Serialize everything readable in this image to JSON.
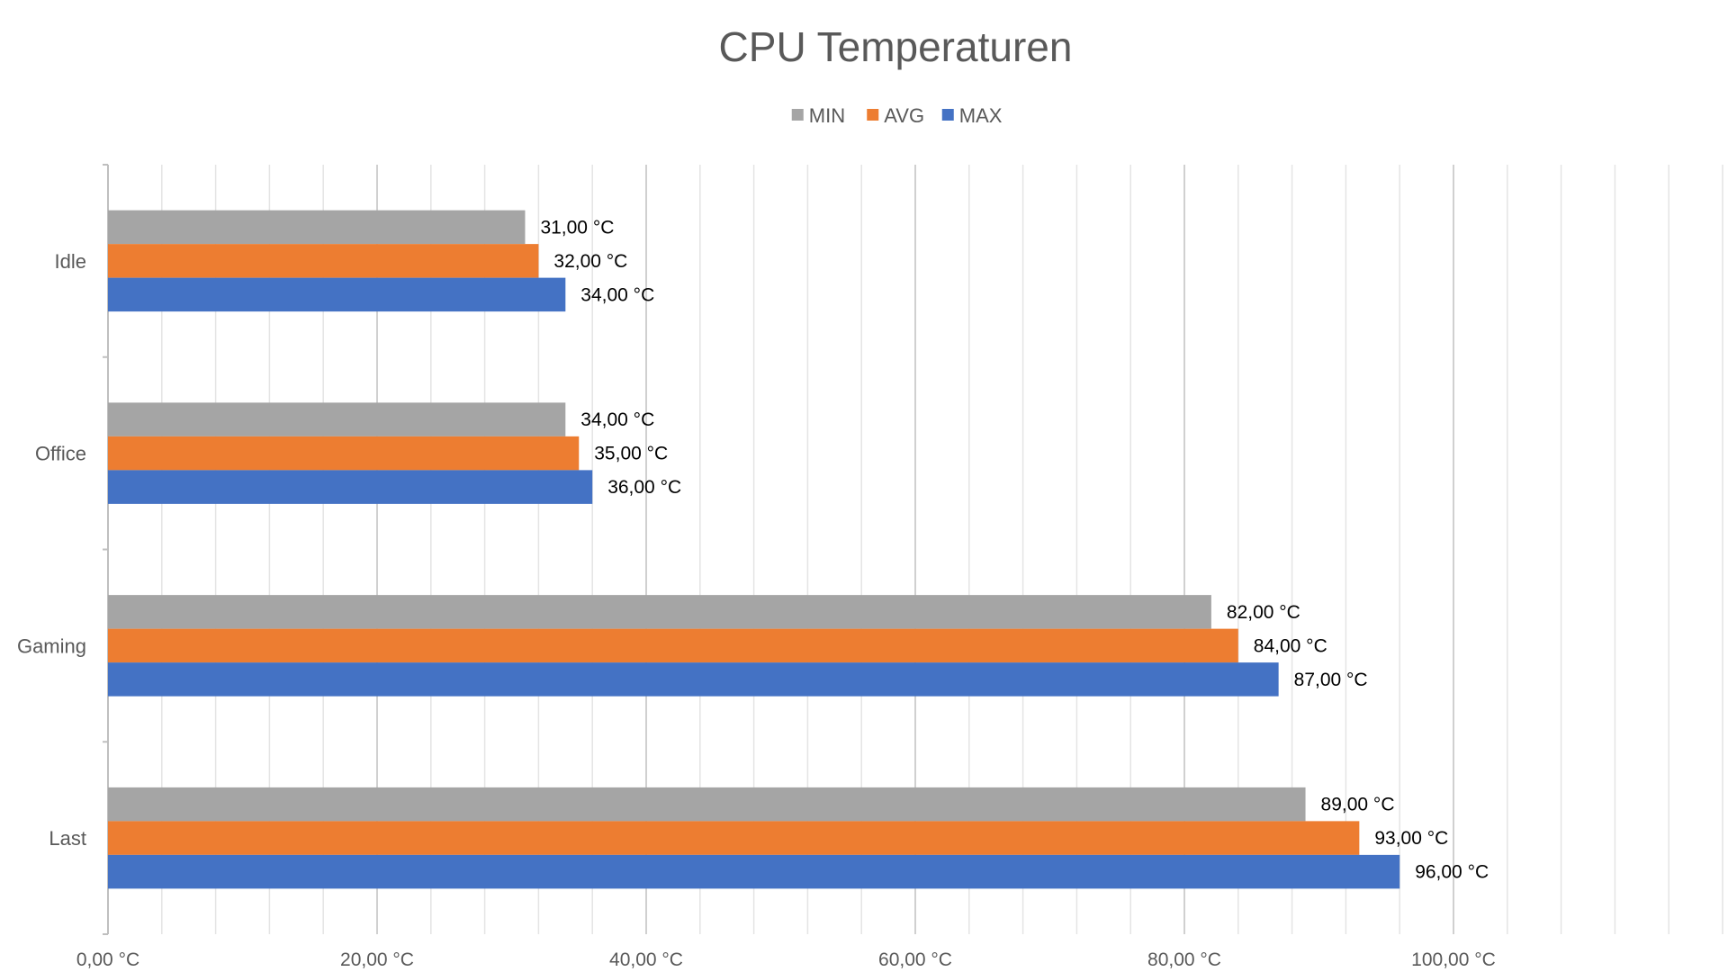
{
  "chart_data": {
    "type": "bar",
    "orientation": "horizontal",
    "title": "CPU Temperaturen",
    "categories": [
      "Idle",
      "Office",
      "Gaming",
      "Last"
    ],
    "series": [
      {
        "name": "MIN",
        "color": "#A5A5A5",
        "values": [
          31,
          34,
          82,
          89
        ],
        "labels": [
          "31,00 °C",
          "34,00 °C",
          "82,00 °C",
          "89,00 °C"
        ]
      },
      {
        "name": "AVG",
        "color": "#ED7D31",
        "values": [
          32,
          35,
          84,
          93
        ],
        "labels": [
          "32,00 °C",
          "35,00 °C",
          "84,00 °C",
          "93,00 °C"
        ]
      },
      {
        "name": "MAX",
        "color": "#4472C4",
        "values": [
          34,
          36,
          87,
          96
        ],
        "labels": [
          "34,00 °C",
          "36,00 °C",
          "87,00 °C",
          "96,00 °C"
        ]
      }
    ],
    "xlim": [
      0,
      120
    ],
    "x_tick_labels": [
      "0,00 °C",
      "20,00 °C",
      "40,00 °C",
      "60,00 °C",
      "80,00 °C",
      "100,00 °C"
    ],
    "x_tick_values": [
      0,
      20,
      40,
      60,
      80,
      100
    ],
    "minor_step": 4,
    "legend_position": "top-center",
    "grid": true
  }
}
